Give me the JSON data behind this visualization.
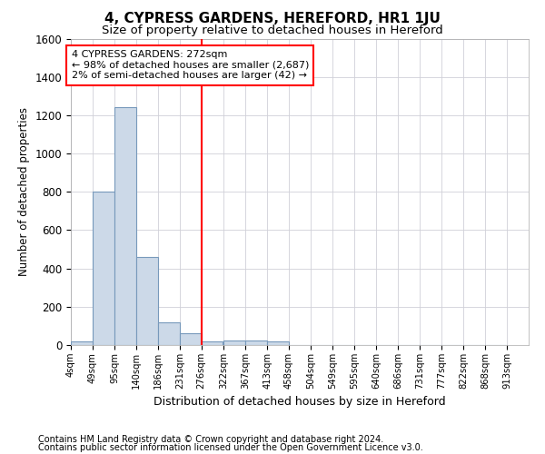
{
  "title": "4, CYPRESS GARDENS, HEREFORD, HR1 1JU",
  "subtitle": "Size of property relative to detached houses in Hereford",
  "xlabel": "Distribution of detached houses by size in Hereford",
  "ylabel": "Number of detached properties",
  "footnote1": "Contains HM Land Registry data © Crown copyright and database right 2024.",
  "footnote2": "Contains public sector information licensed under the Open Government Licence v3.0.",
  "bin_labels": [
    "4sqm",
    "49sqm",
    "95sqm",
    "140sqm",
    "186sqm",
    "231sqm",
    "276sqm",
    "322sqm",
    "367sqm",
    "413sqm",
    "458sqm",
    "504sqm",
    "549sqm",
    "595sqm",
    "640sqm",
    "686sqm",
    "731sqm",
    "777sqm",
    "822sqm",
    "868sqm",
    "913sqm"
  ],
  "bin_edges": [
    4,
    49,
    95,
    140,
    186,
    231,
    276,
    322,
    367,
    413,
    458,
    504,
    549,
    595,
    640,
    686,
    731,
    777,
    822,
    868,
    913
  ],
  "bar_heights": [
    20,
    800,
    1240,
    460,
    120,
    60,
    20,
    25,
    25,
    20,
    0,
    0,
    0,
    0,
    0,
    0,
    0,
    0,
    0,
    0
  ],
  "bar_color": "#ccd9e8",
  "bar_edge_color": "#7799bb",
  "ylim": [
    0,
    1600
  ],
  "yticks": [
    0,
    200,
    400,
    600,
    800,
    1000,
    1200,
    1400,
    1600
  ],
  "red_line_x": 276,
  "annotation_title": "4 CYPRESS GARDENS: 272sqm",
  "annotation_line1": "← 98% of detached houses are smaller (2,687)",
  "annotation_line2": "2% of semi-detached houses are larger (42) →",
  "bg_color": "#ffffff",
  "grid_color": "#d0d0d8"
}
